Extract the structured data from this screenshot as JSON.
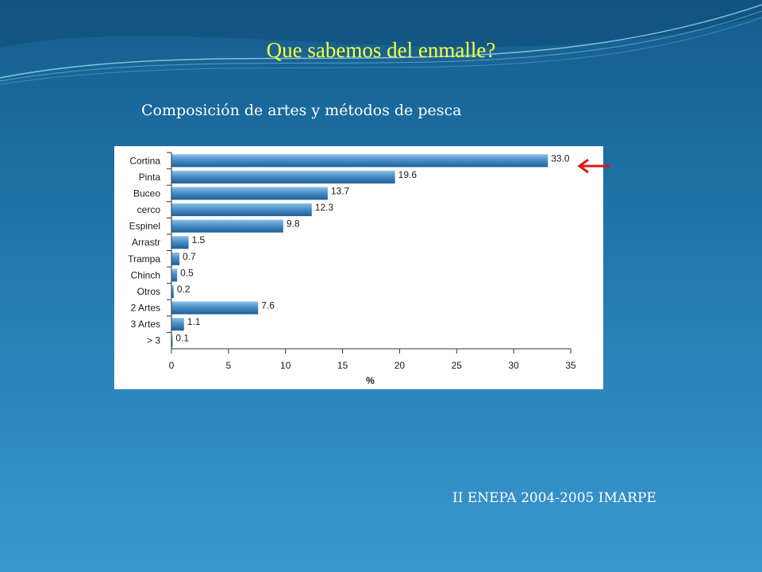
{
  "slide": {
    "title": "Que sabemos del enmalle?",
    "subtitle": "Composición  de  artes  y métodos de pesca",
    "footer": "II ENEPA 2004-2005 IMARPE"
  },
  "colors": {
    "title": "#ffff33",
    "bar": "#4a90c8",
    "arrow": "#d81818"
  },
  "chart_data": {
    "type": "bar",
    "orientation": "horizontal",
    "categories": [
      "Cortina",
      "Pinta",
      "Buceo",
      "cerco",
      "Espinel",
      "Arrastr",
      "Trampa",
      "Chinch",
      "Otros",
      "2 Artes",
      "3 Artes",
      "> 3"
    ],
    "values": [
      33.0,
      19.6,
      13.7,
      12.3,
      9.8,
      1.5,
      0.7,
      0.5,
      0.2,
      7.6,
      1.1,
      0.1
    ],
    "value_labels": [
      "33.0",
      "19.6",
      "13.7",
      "12.3",
      "9.8",
      "1.5",
      "0.7",
      "0.5",
      "0.2",
      "7.6",
      "1.1",
      "0.1"
    ],
    "xlabel": "%",
    "xlim": [
      0,
      35
    ],
    "xticks": [
      0,
      5,
      10,
      15,
      20,
      25,
      30,
      35
    ],
    "grid": false,
    "annotation": "arrow pointing at Cortina"
  }
}
